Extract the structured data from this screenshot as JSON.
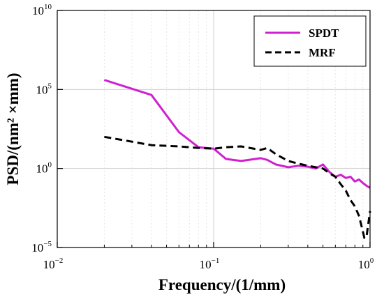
{
  "chart_data": {
    "type": "line",
    "title": "",
    "xlabel": "Frequency/(1/mm)",
    "ylabel": "PSD/(nm² ×mm)",
    "xscale": "log",
    "yscale": "log",
    "xlim": [
      0.01,
      1
    ],
    "ylim": [
      1e-05,
      10000000000.0
    ],
    "grid": true,
    "legend_position": "top-right",
    "x_ticks": [
      {
        "value": 0.01,
        "base": "10",
        "exp": "−2"
      },
      {
        "value": 0.1,
        "base": "10",
        "exp": "−1"
      },
      {
        "value": 1,
        "base": "10",
        "exp": "0"
      }
    ],
    "y_ticks": [
      {
        "value": 1e-05,
        "base": "10",
        "exp": "−5"
      },
      {
        "value": 1,
        "base": "10",
        "exp": "0"
      },
      {
        "value": 100000.0,
        "base": "10",
        "exp": "5"
      },
      {
        "value": 10000000000.0,
        "base": "10",
        "exp": "10"
      }
    ],
    "series": [
      {
        "name": "SPDT",
        "color": "#d020d0",
        "style": "solid",
        "x": [
          0.02,
          0.04,
          0.06,
          0.08,
          0.1,
          0.12,
          0.15,
          0.2,
          0.22,
          0.25,
          0.3,
          0.35,
          0.4,
          0.45,
          0.5,
          0.55,
          0.6,
          0.65,
          0.7,
          0.75,
          0.8,
          0.85,
          0.9,
          0.95,
          1.0
        ],
        "y": [
          400000,
          45000,
          200,
          22,
          18,
          4,
          3,
          4.5,
          3.5,
          1.8,
          1.2,
          1.5,
          1.3,
          1.0,
          1.8,
          0.6,
          0.3,
          0.4,
          0.25,
          0.3,
          0.15,
          0.2,
          0.12,
          0.08,
          0.06
        ]
      },
      {
        "name": "MRF",
        "color": "#000000",
        "style": "dashed",
        "x": [
          0.02,
          0.03,
          0.04,
          0.06,
          0.08,
          0.1,
          0.12,
          0.15,
          0.2,
          0.22,
          0.25,
          0.3,
          0.35,
          0.4,
          0.45,
          0.5,
          0.55,
          0.6,
          0.65,
          0.7,
          0.75,
          0.8,
          0.85,
          0.9,
          0.92,
          0.95,
          1.0
        ],
        "y": [
          100,
          50,
          30,
          25,
          20,
          18,
          22,
          25,
          15,
          20,
          8,
          3,
          2,
          1.5,
          1.2,
          1.0,
          0.5,
          0.3,
          0.1,
          0.04,
          0.01,
          0.004,
          0.001,
          0.0001,
          4e-05,
          5e-05,
          0.002
        ]
      }
    ]
  }
}
